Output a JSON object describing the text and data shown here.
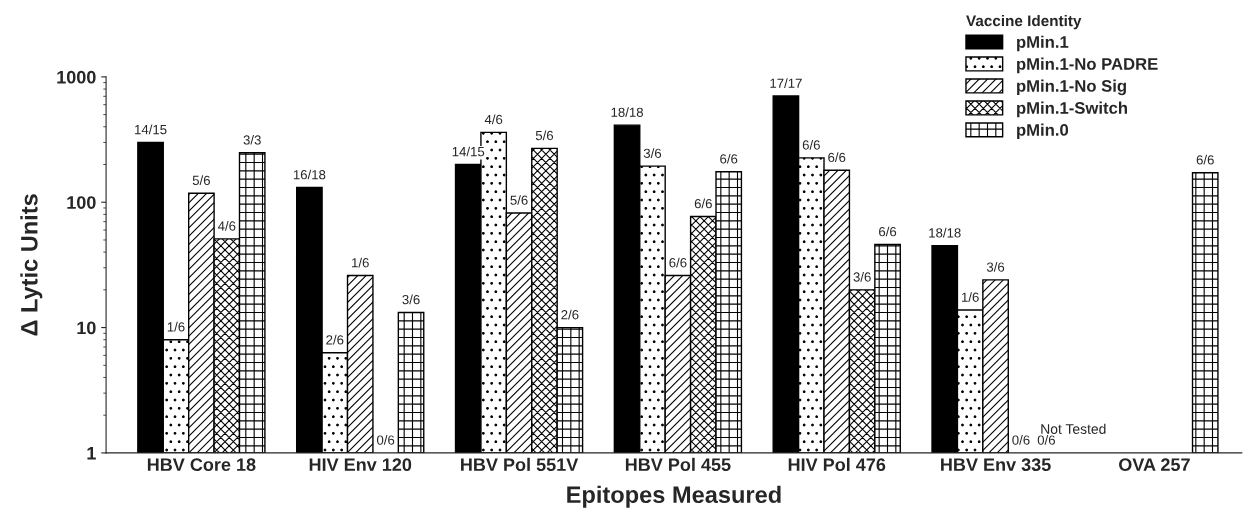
{
  "chart_data": {
    "type": "bar",
    "xlabel": "Epitopes Measured",
    "ylabel": "Δ Lytic Units",
    "legend_title": "Vaccine Identity",
    "categories": [
      "HBV Core 18",
      "HIV Env 120",
      "HBV Pol 551V",
      "HBV Pol 455",
      "HIV Pol 476",
      "HBV Env 335",
      "OVA 257"
    ],
    "series": [
      {
        "name": "pMin.1",
        "color": "#000000",
        "values": [
          300,
          131,
          200,
          412,
          703,
          45,
          null
        ]
      },
      {
        "name": "pMin.1-No PADRE",
        "color": "#000000",
        "values": [
          8.0,
          6.3,
          361,
          194,
          226,
          13.8,
          null
        ]
      },
      {
        "name": "pMin.1-No Sig",
        "color": "#000000",
        "values": [
          118,
          26,
          82,
          26,
          180,
          24,
          null
        ]
      },
      {
        "name": "pMin.1-Switch",
        "color": "#000000",
        "values": [
          51,
          null,
          269,
          77,
          20,
          null,
          null
        ]
      },
      {
        "name": "pMin.0",
        "color": "#000000",
        "values": [
          248,
          13.2,
          10,
          175,
          46,
          null,
          172
        ]
      }
    ],
    "annotations": [
      "14/15",
      "1/6",
      "5/6",
      "4/6",
      "3/3",
      "16/18",
      "2/6",
      "1/6",
      "0/6",
      "3/6",
      "14/15",
      "4/6",
      "5/6",
      "5/6",
      "2/6",
      "18/18",
      "3/6",
      "6/6",
      "6/6",
      "6/6",
      "17/17",
      "6/6",
      "6/6",
      "3/6",
      "6/6",
      "18/18",
      "1/6",
      "3/6",
      "0/6",
      "0/6",
      "6/6",
      "Not Tested"
    ],
    "log": "y",
    "ylim": [
      1,
      1000
    ],
    "yticks": [
      1,
      10,
      100,
      1000
    ],
    "grid": false,
    "legend": "top right"
  }
}
